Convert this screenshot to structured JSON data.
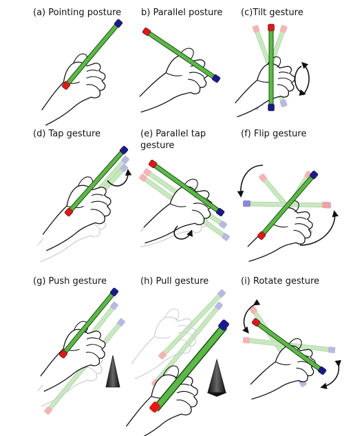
{
  "captions": {
    "a": "(a) Pointing posture",
    "b": "b) Parallel posture",
    "c": "(c)Tilt gesture",
    "d": "(d) Tap gesture",
    "e": "(e) Parallel tap gesture",
    "f": "(f) Flip gesture",
    "g": "(g) Push gesture",
    "h": "(h) Pull gesture",
    "i": "(i) Rotate gesture"
  },
  "colors": {
    "rod": "#5cb847",
    "rod_outline": "#1c4d15",
    "end_red": "#e01818",
    "end_blue": "#1a1a8c",
    "ghost_rod": "#c9e8c0",
    "ghost_red": "#f3b4b4",
    "ghost_blue": "#b9b9e0",
    "hand_stroke": "#111111",
    "ghost_hand": "#cfcfcf",
    "arrow": "#111111"
  },
  "icons": [
    "stylus",
    "hand",
    "curved-arrow",
    "up-cone-arrow",
    "down-cone-arrow"
  ]
}
